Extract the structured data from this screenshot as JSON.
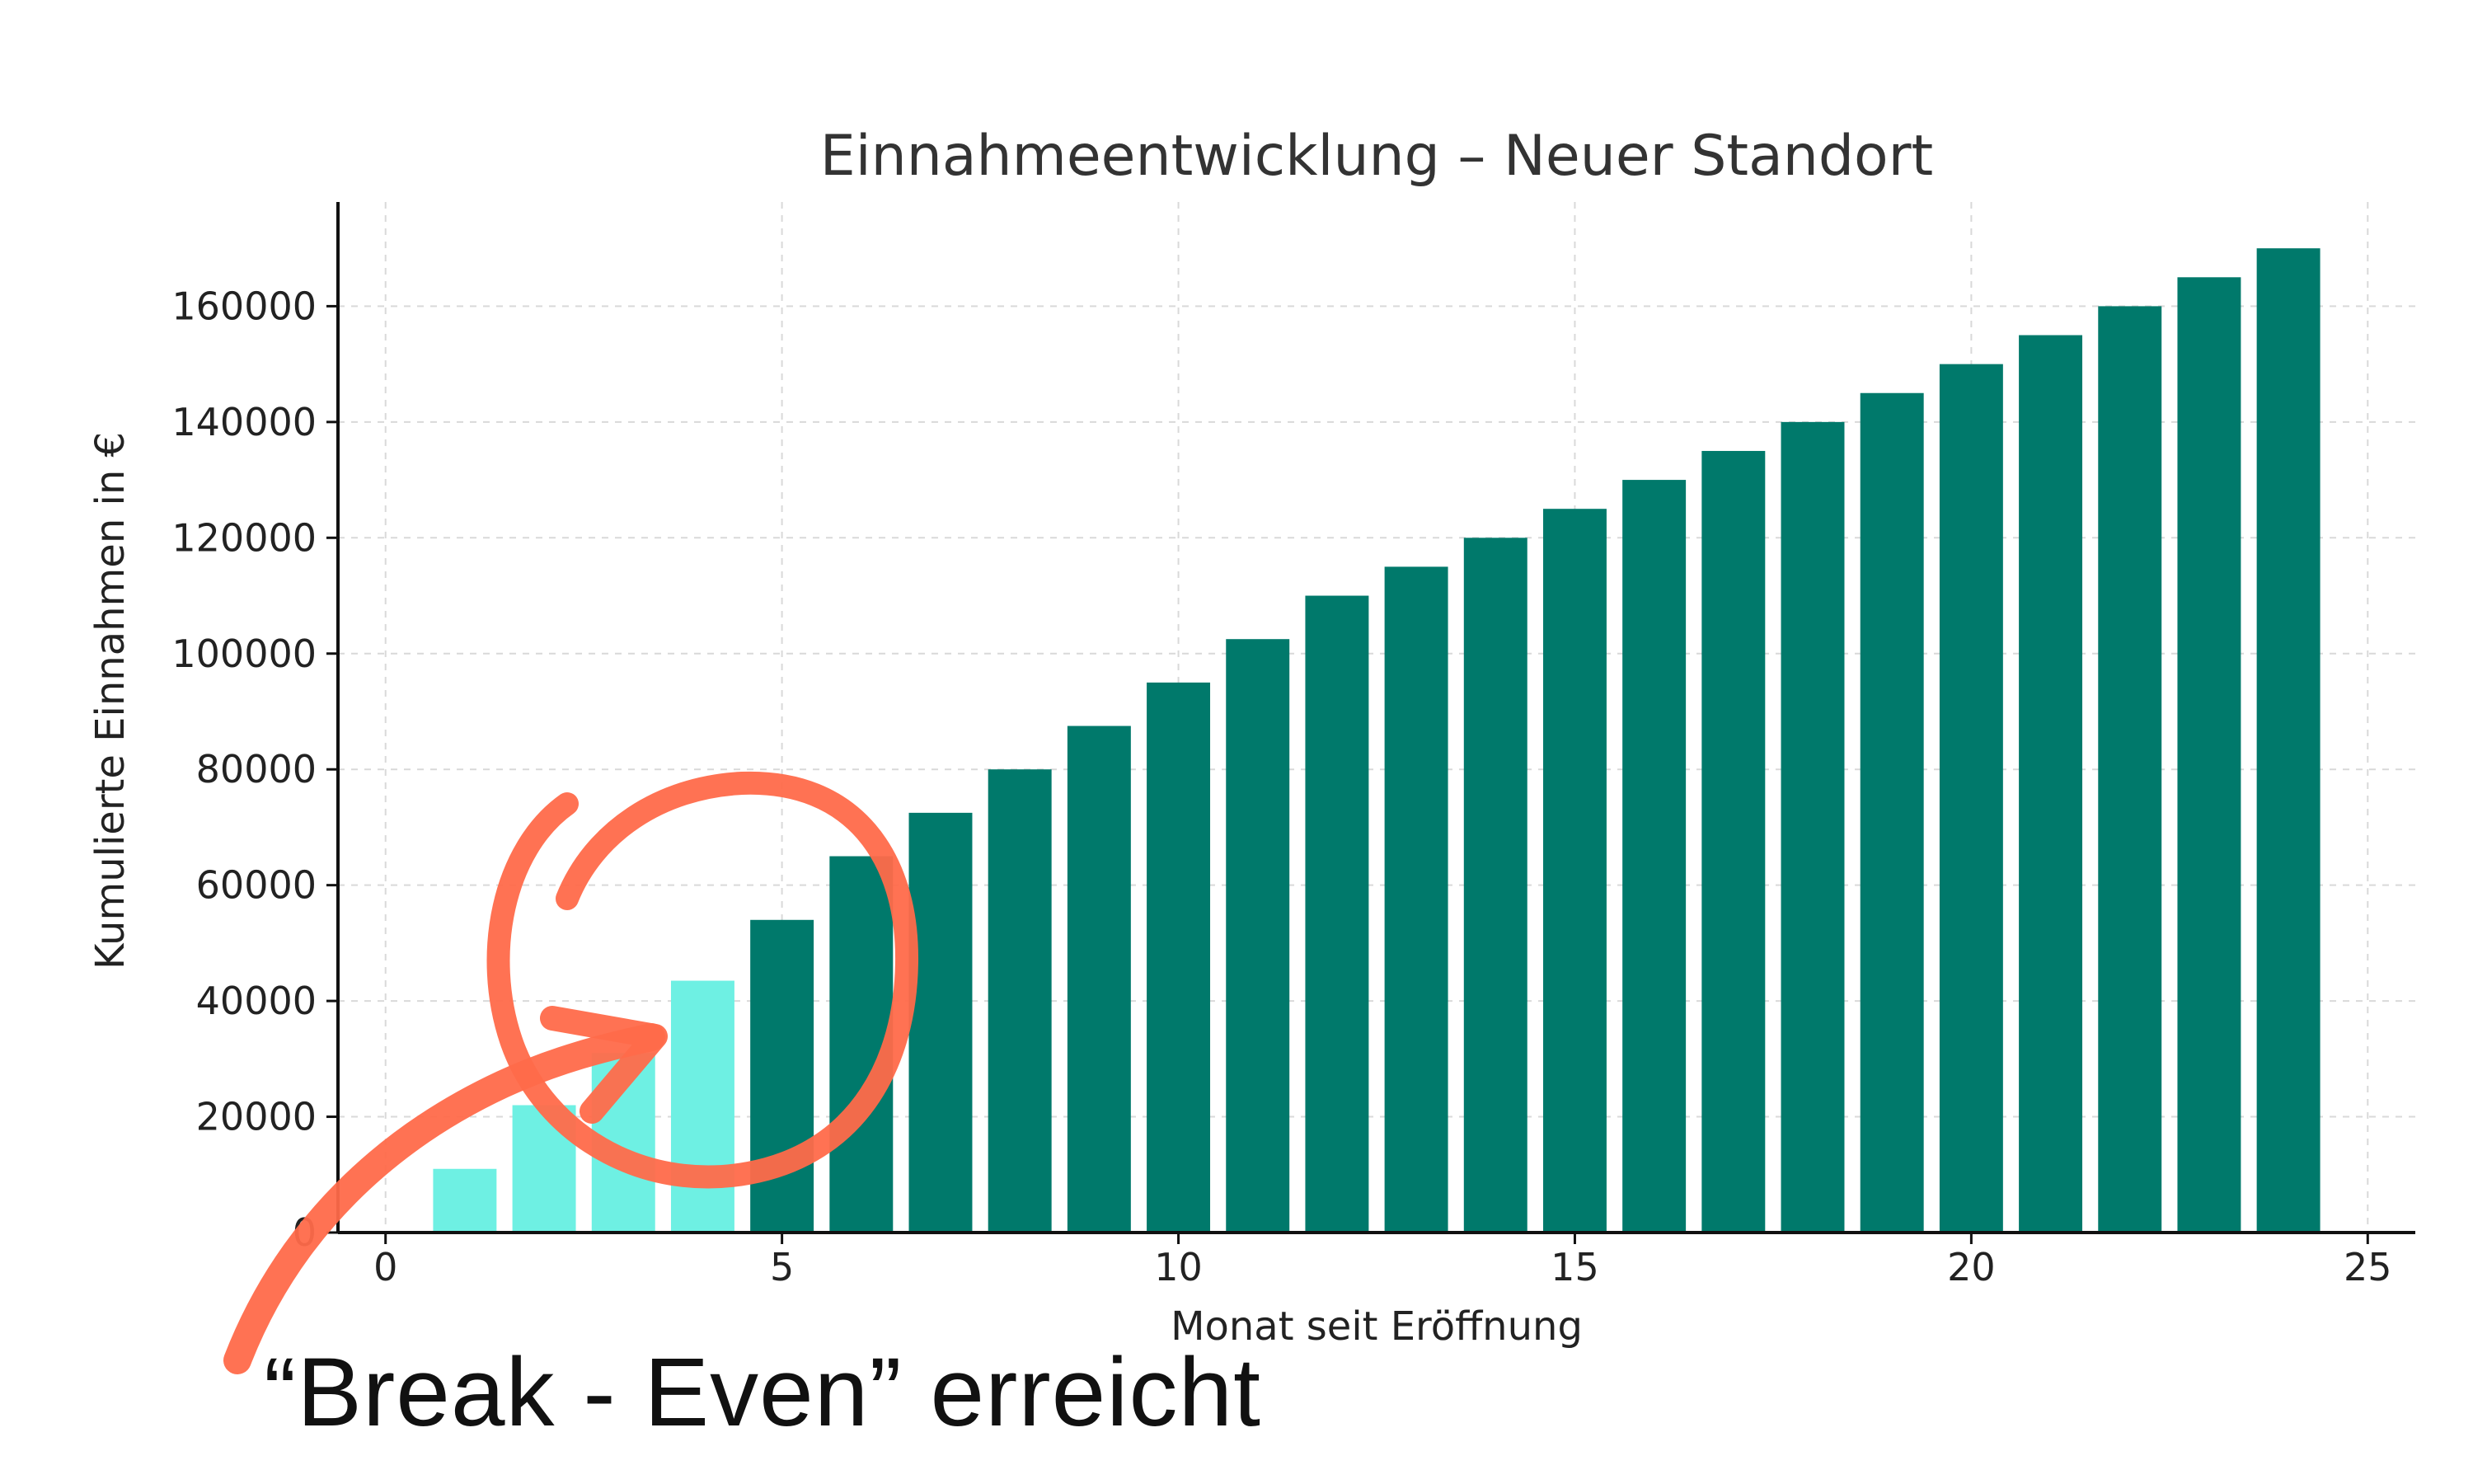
{
  "chart_data": {
    "type": "bar",
    "title": "Einnahmeentwicklung – Neuer Standort",
    "xlabel": "Monat seit Eröffnung",
    "ylabel": "Kumulierte Einnahmen in €",
    "x": [
      1,
      2,
      3,
      4,
      5,
      6,
      7,
      8,
      9,
      10,
      11,
      12,
      13,
      14,
      15,
      16,
      17,
      18,
      19,
      20,
      21,
      22,
      23,
      24
    ],
    "values": [
      11000,
      22000,
      31000,
      43500,
      54000,
      65000,
      72500,
      80000,
      87500,
      95000,
      102500,
      110000,
      115000,
      120000,
      125000,
      130000,
      135000,
      140000,
      145000,
      150000,
      155000,
      160000,
      165000,
      170000
    ],
    "highlight_until_x": 4,
    "xlim": [
      -0.6,
      25.6
    ],
    "ylim": [
      0,
      178000
    ],
    "xticks": [
      0,
      5,
      10,
      15,
      20,
      25
    ],
    "yticks": [
      0,
      20000,
      40000,
      60000,
      80000,
      100000,
      120000,
      140000,
      160000
    ],
    "grid": true,
    "colors": {
      "bar_default": "#00796b",
      "bar_highlight": "#6ef0e3",
      "annotation": "#ff6a4a",
      "text": "#222222",
      "axis": "#111111",
      "grid": "#d9d9d9"
    },
    "annotation": {
      "text": "“Break - Even” erreicht"
    }
  }
}
